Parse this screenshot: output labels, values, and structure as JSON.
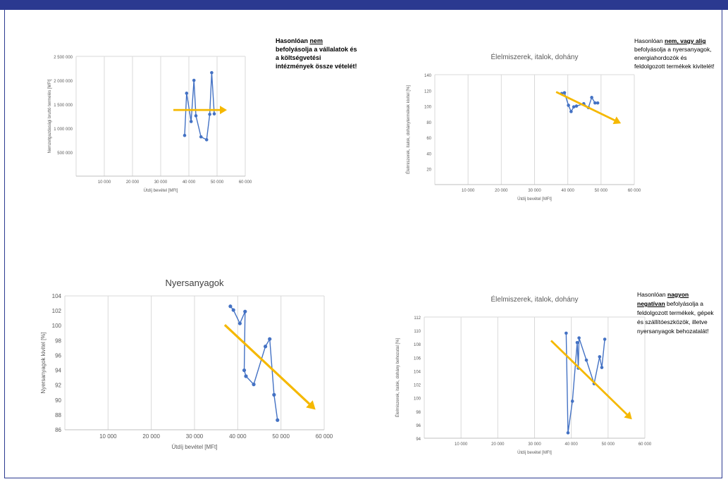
{
  "colors": {
    "frame": "#2b3990",
    "series": "#4472c4",
    "arrow": "#f5b800",
    "grid": "#d9d9d9"
  },
  "chart_data": [
    {
      "id": "c1",
      "type": "line",
      "title": "",
      "ylabel": "Nemzetgazdasági bruttó termelés [MFt]",
      "xlabel": "Útdíj bevétel [MFt]",
      "xlim": [
        0,
        60000
      ],
      "ylim": [
        0,
        2500000
      ],
      "xticks": [
        10000,
        20000,
        30000,
        40000,
        50000,
        60000
      ],
      "xtick_labels": [
        "10 000",
        "20 000",
        "30 000",
        "40 000",
        "50 000",
        "60 000"
      ],
      "yticks": [
        500000,
        1000000,
        1500000,
        2000000,
        2500000
      ],
      "ytick_labels": [
        "500 000",
        "1 000 000",
        "1 500 000",
        "2 000 000",
        "2 500 000"
      ],
      "series": [
        {
          "x": [
            38500,
            39200,
            40800,
            41800,
            42500,
            44300,
            46300,
            47400,
            48100,
            49000
          ],
          "y": [
            850000,
            1730000,
            1140000,
            2000000,
            1260000,
            820000,
            760000,
            1290000,
            2160000,
            1300000
          ]
        }
      ],
      "trend_arrow": {
        "from": [
          34500,
          1380000
        ],
        "to": [
          53500,
          1380000
        ]
      }
    },
    {
      "id": "c2",
      "type": "line",
      "title": "Élelmiszerek, italok, dohány",
      "ylabel": "Élelmiszerek, italok, dohánytermékek kivitel [%]",
      "xlabel": "Útdíj bevétel [MFt]",
      "xlim": [
        0,
        60000
      ],
      "ylim": [
        0,
        140
      ],
      "xticks": [
        10000,
        20000,
        30000,
        40000,
        50000,
        60000
      ],
      "xtick_labels": [
        "10 000",
        "20 000",
        "30 000",
        "40 000",
        "50 000",
        "60 000"
      ],
      "yticks": [
        20,
        40,
        60,
        80,
        100,
        120,
        140
      ],
      "ytick_labels": [
        "20",
        "40",
        "60",
        "80",
        "100",
        "120",
        "140"
      ],
      "series": [
        {
          "x": [
            38200,
            39000,
            40200,
            41000,
            41800,
            42600,
            44800,
            46200,
            47200,
            48200,
            49000
          ],
          "y": [
            116,
            117,
            101,
            93,
            99,
            100,
            103,
            98,
            111,
            104,
            104
          ]
        }
      ],
      "trend_arrow": {
        "from": [
          36500,
          118
        ],
        "to": [
          56000,
          78
        ]
      }
    },
    {
      "id": "c3",
      "type": "line",
      "title": "Nyersanyagok",
      "ylabel": "Nyersanyagok kivitel [%]",
      "xlabel": "Útdíj bevétel [MFt]",
      "xlim": [
        0,
        60000
      ],
      "ylim": [
        86,
        104
      ],
      "xticks": [
        10000,
        20000,
        30000,
        40000,
        50000,
        60000
      ],
      "xtick_labels": [
        "10 000",
        "20 000",
        "30 000",
        "40 000",
        "50 000",
        "60 000"
      ],
      "yticks": [
        86,
        88,
        90,
        92,
        94,
        96,
        98,
        100,
        102,
        104
      ],
      "ytick_labels": [
        "86",
        "88",
        "90",
        "92",
        "94",
        "96",
        "98",
        "100",
        "102",
        "104"
      ],
      "series": [
        {
          "x": [
            38300,
            39000,
            40500,
            41700,
            41500,
            41900,
            43700,
            46400,
            47400,
            48400,
            49200
          ],
          "y": [
            102.6,
            102.1,
            100.3,
            101.9,
            94.0,
            93.2,
            92.1,
            97.2,
            98.2,
            90.7,
            87.3
          ]
        }
      ],
      "trend_arrow": {
        "from": [
          37000,
          100.1
        ],
        "to": [
          58000,
          88.7
        ]
      }
    },
    {
      "id": "c4",
      "type": "line",
      "title": "Élelmiszerek, italok, dohány",
      "ylabel": "Élelmiszerek, italok, dohány behozatal [%]",
      "xlabel": "Útdíj bevétel [MFt]",
      "xlim": [
        0,
        60000
      ],
      "ylim": [
        94,
        112
      ],
      "xticks": [
        10000,
        20000,
        30000,
        40000,
        50000,
        60000
      ],
      "xtick_labels": [
        "10 000",
        "20 000",
        "30 000",
        "40 000",
        "50 000",
        "60 000"
      ],
      "yticks": [
        94,
        96,
        98,
        100,
        102,
        104,
        106,
        108,
        110,
        112
      ],
      "ytick_labels": [
        "94",
        "96",
        "98",
        "100",
        "102",
        "104",
        "106",
        "108",
        "110",
        "112"
      ],
      "series": [
        {
          "x": [
            38600,
            39100,
            40300,
            41600,
            41900,
            42100,
            44100,
            46200,
            47700,
            48300,
            49100
          ],
          "y": [
            109.6,
            94.8,
            99.5,
            108.2,
            104.4,
            108.9,
            105.6,
            102.1,
            106.1,
            104.5,
            108.7
          ]
        }
      ],
      "trend_arrow": {
        "from": [
          34500,
          108.5
        ],
        "to": [
          56500,
          96.8
        ]
      }
    }
  ],
  "notes": {
    "n1": {
      "pre": "Hasonlóan ",
      "em": "nem",
      "post": " befolyásolja a vállalatok és a költségvetési intézmények össze vételét!"
    },
    "n2": {
      "pre": "Hasonlóan ",
      "em": "nem, vagy alig",
      "post": " befolyásolja a nyersanyagok, energiahordozók és feldolgozott termékek kivitelét!"
    },
    "n3": {
      "pre": "Hasonlóan ",
      "em": "nagyon negatívan",
      "post": " befolyásolja a feldolgozott termékek, gépek és szállítóeszközök, illetve nyersanyagok behozatalát!"
    }
  }
}
